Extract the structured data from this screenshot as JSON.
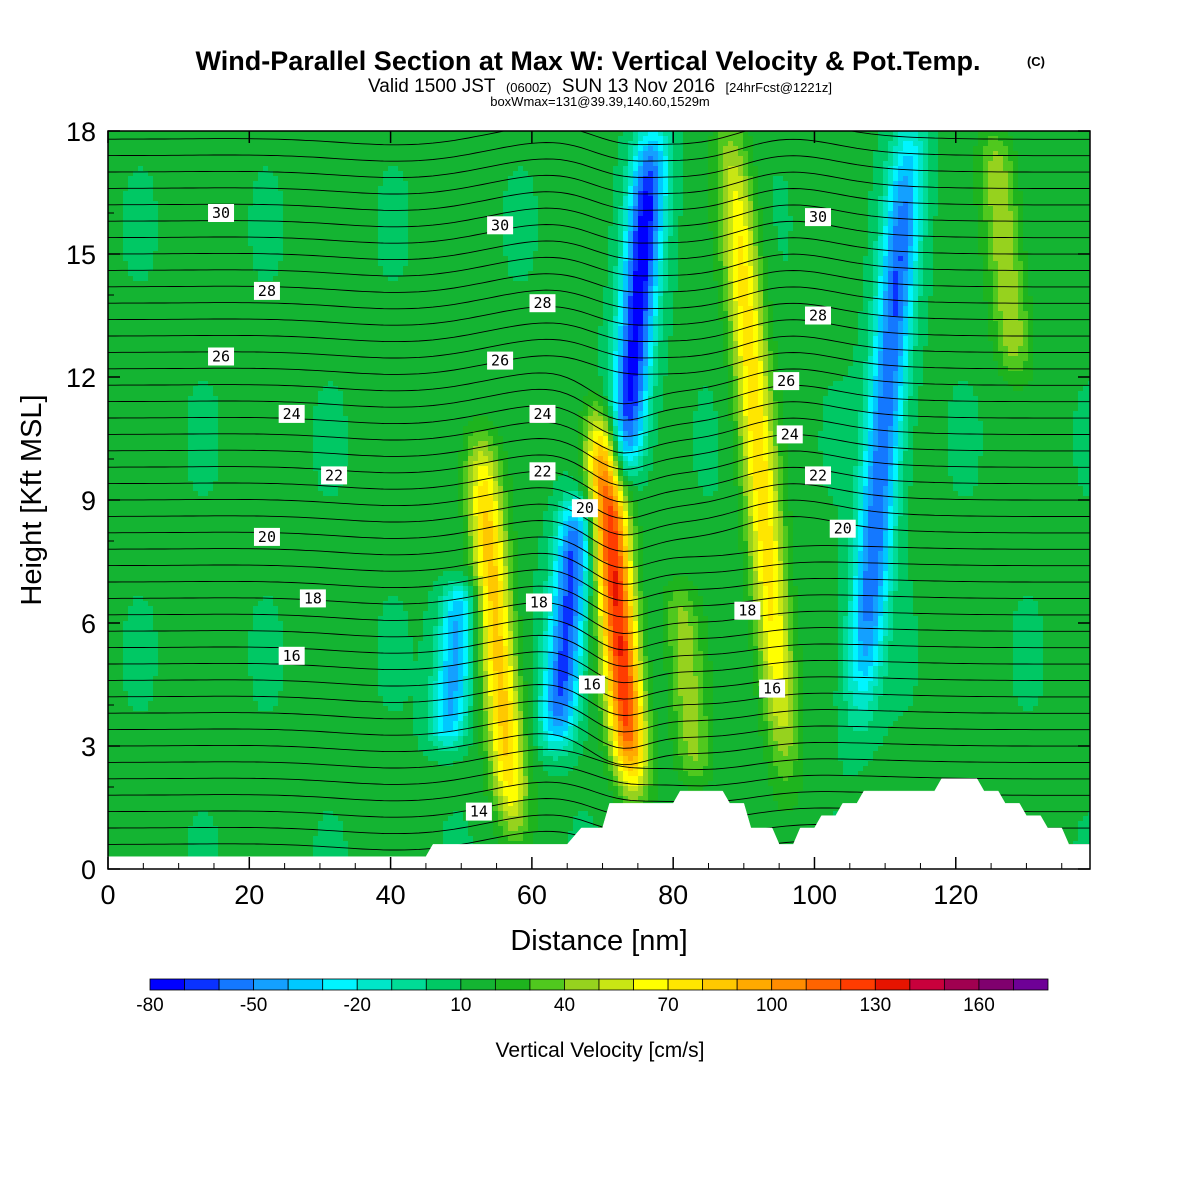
{
  "title": {
    "main": "Wind-Parallel Section at Max W: Vertical Velocity & Pot.Temp.",
    "copyright": "(C)",
    "valid_prefix": "Valid 1500 JST",
    "valid_zulu": "(0600Z)",
    "valid_date": "SUN 13 Nov 2016",
    "forecast": "[24hrFcst@1221z]",
    "box_info": "boxWmax=131@39.39,140.60,1529m"
  },
  "chart_data": {
    "type": "heatmap",
    "xlabel": "Distance [nm]",
    "ylabel": "Height [Kft MSL]",
    "xlim": [
      0,
      139
    ],
    "ylim": [
      0,
      18
    ],
    "x_ticks": [
      "0",
      "20",
      "40",
      "60",
      "80",
      "100",
      "120"
    ],
    "x_tick_values": [
      0,
      20,
      40,
      60,
      80,
      100,
      120
    ],
    "y_ticks": [
      "0",
      "3",
      "6",
      "9",
      "12",
      "15",
      "18"
    ],
    "y_tick_values": [
      0,
      3,
      6,
      9,
      12,
      15,
      18
    ],
    "colorbar": {
      "title": "Vertical Velocity [cm/s]",
      "min": -80,
      "max": 180,
      "step": 10,
      "tick_labels": [
        "-80",
        "-50",
        "-20",
        "10",
        "40",
        "70",
        "100",
        "130",
        "160"
      ],
      "tick_values": [
        -80,
        -50,
        -20,
        10,
        40,
        70,
        100,
        130,
        160
      ],
      "colors": [
        "#0000ff",
        "#0a32ff",
        "#1478ff",
        "#14a0ff",
        "#00c8ff",
        "#00f5ff",
        "#00e6c8",
        "#00dc96",
        "#00c864",
        "#14b432",
        "#1eb41e",
        "#50c81e",
        "#96d21e",
        "#c8e614",
        "#ffff00",
        "#ffe600",
        "#ffc800",
        "#ffaa00",
        "#ff8c00",
        "#ff6400",
        "#ff3c00",
        "#e61400",
        "#c8003c",
        "#a00050",
        "#80006e",
        "#6e0096"
      ]
    },
    "velocity_features": [
      {
        "kind": "updraft",
        "x": 55,
        "y_top": 10.5,
        "y_bottom": 1.0,
        "peak": 85
      },
      {
        "kind": "downdraft",
        "x": 49,
        "y_top": 7,
        "y_bottom": 3,
        "peak": -45
      },
      {
        "kind": "downdraft",
        "x": 65,
        "y_top": 9,
        "y_bottom": 3,
        "peak": -65
      },
      {
        "kind": "updraft",
        "x": 72,
        "y_top": 11,
        "y_bottom": 2,
        "peak": 131
      },
      {
        "kind": "downdraft",
        "x": 75,
        "y_top": 18,
        "y_bottom": 9.5,
        "peak": -75
      },
      {
        "kind": "updraft",
        "x": 82,
        "y_top": 7,
        "y_bottom": 2,
        "peak": 45
      },
      {
        "kind": "updraft",
        "x": 92,
        "y_top": 18,
        "y_bottom": 2.5,
        "peak": 75
      },
      {
        "kind": "downdraft",
        "x": 110,
        "y_top": 18,
        "y_bottom": 4,
        "peak": -60
      },
      {
        "kind": "updraft",
        "x": 127,
        "y_top": 18,
        "y_bottom": 12,
        "peak": 50
      }
    ],
    "terrain_heights": {
      "x": [
        0,
        45,
        46,
        65,
        67,
        70,
        71,
        80,
        81,
        87,
        88,
        90,
        91,
        94,
        95,
        97,
        98,
        100,
        101,
        103,
        104,
        106,
        107,
        108,
        109,
        117,
        118,
        123,
        124,
        126,
        127,
        129,
        130,
        132,
        133,
        135,
        136,
        139
      ],
      "y": [
        0.3,
        0.3,
        0.6,
        0.6,
        1.0,
        1.0,
        1.6,
        1.6,
        1.9,
        1.9,
        1.6,
        1.6,
        1.0,
        1.0,
        0.6,
        0.6,
        1.0,
        1.0,
        1.3,
        1.3,
        1.6,
        1.6,
        1.9,
        1.9,
        1.9,
        1.9,
        2.2,
        2.2,
        1.9,
        1.9,
        1.6,
        1.6,
        1.3,
        1.3,
        1.0,
        1.0,
        0.6,
        0.6
      ]
    },
    "contour_labels": [
      {
        "text": "30",
        "x": 16,
        "y": 16.0
      },
      {
        "text": "28",
        "x": 22.5,
        "y": 14.1
      },
      {
        "text": "26",
        "x": 16,
        "y": 12.5
      },
      {
        "text": "24",
        "x": 26,
        "y": 11.1
      },
      {
        "text": "22",
        "x": 32,
        "y": 9.6
      },
      {
        "text": "20",
        "x": 22.5,
        "y": 8.1
      },
      {
        "text": "18",
        "x": 29,
        "y": 6.6
      },
      {
        "text": "16",
        "x": 26,
        "y": 5.2
      },
      {
        "text": "14",
        "x": 52.5,
        "y": 1.4
      },
      {
        "text": "30",
        "x": 55.5,
        "y": 15.7
      },
      {
        "text": "28",
        "x": 61.5,
        "y": 13.8
      },
      {
        "text": "26",
        "x": 55.5,
        "y": 12.4
      },
      {
        "text": "24",
        "x": 61.5,
        "y": 11.1
      },
      {
        "text": "22",
        "x": 61.5,
        "y": 9.7
      },
      {
        "text": "20",
        "x": 67.5,
        "y": 8.8
      },
      {
        "text": "18",
        "x": 61,
        "y": 6.5
      },
      {
        "text": "16",
        "x": 68.5,
        "y": 4.5
      },
      {
        "text": "30",
        "x": 100.5,
        "y": 15.9
      },
      {
        "text": "28",
        "x": 100.5,
        "y": 13.5
      },
      {
        "text": "26",
        "x": 96,
        "y": 11.9
      },
      {
        "text": "24",
        "x": 96.5,
        "y": 10.6
      },
      {
        "text": "22",
        "x": 100.5,
        "y": 9.6
      },
      {
        "text": "20",
        "x": 104,
        "y": 8.3
      },
      {
        "text": "18",
        "x": 90.5,
        "y": 6.3
      },
      {
        "text": "16",
        "x": 94,
        "y": 4.4
      }
    ]
  }
}
